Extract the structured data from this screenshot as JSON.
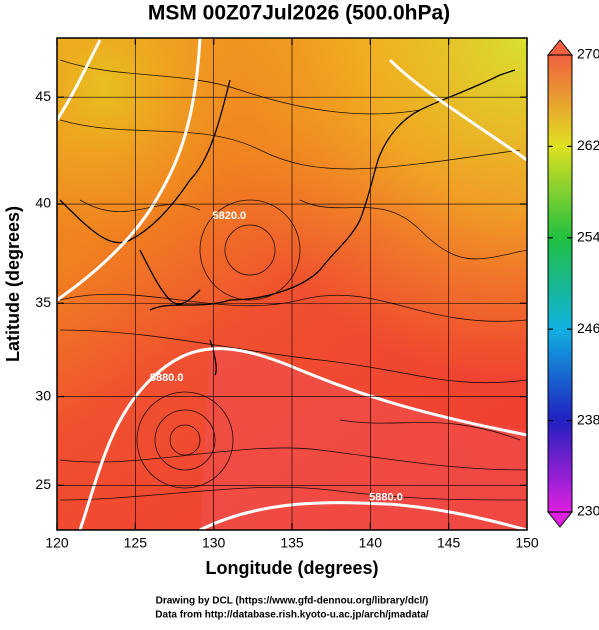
{
  "chart_data": {
    "type": "map",
    "title": "MSM 00Z07Jul2026 (500.0hPa)",
    "x_label": "Longitude (degrees)",
    "y_label": "Latitude  (degrees)",
    "projection": "mercator",
    "xlim": [
      120,
      150
    ],
    "xticks": [
      120,
      125,
      130,
      135,
      140,
      145,
      150
    ],
    "ylim": [
      22.4,
      47.6
    ],
    "yticks": [
      25,
      30,
      35,
      40,
      45
    ],
    "colorbar": {
      "lim": [
        230,
        270
      ],
      "ticks": [
        230,
        238,
        246,
        254,
        262,
        270
      ],
      "colors": [
        "#e020e0",
        "#2020c0",
        "#10b0e0",
        "#20c040",
        "#e0e020",
        "#f06040"
      ]
    },
    "contour_labels": [
      {
        "text": "5820.0",
        "lon": 131,
        "lat": 39.4
      },
      {
        "text": "5880.0",
        "lon": 127,
        "lat": 31.0
      },
      {
        "text": "5880.0",
        "lon": 141,
        "lat": 24.3
      }
    ],
    "footer": [
      "Drawing by DCL (https://www.gfd-dennou.org/library/dcl/)",
      "Data from http://database.rish.kyoto-u.ac.jp/arch/jmadata/"
    ]
  }
}
